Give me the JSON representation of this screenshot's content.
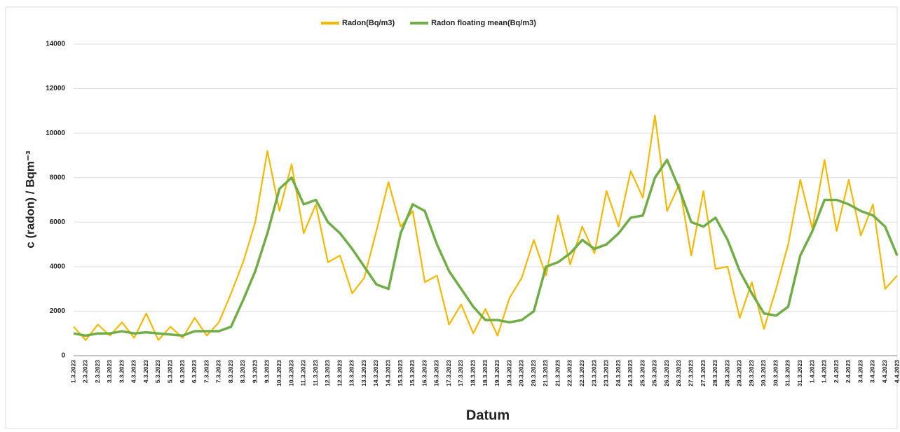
{
  "chart_data": {
    "type": "line",
    "y_label": "c (radon) / Bqm⁻³",
    "x_label": "Datum",
    "categories": [
      "1.3.2023",
      "2.3.2023",
      "2.3.2023",
      "3.3.2023",
      "3.3.2023",
      "4.3.2023",
      "4.3.2023",
      "5.3.2023",
      "5.3.2023",
      "6.3.2023",
      "6.3.2023",
      "7.3.2023",
      "7.3.2023",
      "8.3.2023",
      "8.3.2023",
      "9.3.2023",
      "9.3.2023",
      "10.3.2023",
      "10.3.2023",
      "11.3.2023",
      "11.3.2023",
      "12.3.2023",
      "12.3.2023",
      "13.3.2023",
      "13.3.2023",
      "14.3.2023",
      "14.3.2023",
      "15.3.2023",
      "15.3.2023",
      "16.3.2023",
      "16.3.2023",
      "17.3.2023",
      "17.3.2023",
      "18.3.2023",
      "18.3.2023",
      "19.3.2023",
      "19.3.2023",
      "20.3.2023",
      "20.3.2023",
      "21.3.2023",
      "21.3.2023",
      "22.3.2023",
      "22.3.2023",
      "23.3.2023",
      "23.3.2023",
      "24.3.2023",
      "24.3.2023",
      "25.3.2023",
      "25.3.2023",
      "26.3.2023",
      "26.3.2023",
      "27.3.2023",
      "27.3.2023",
      "28.3.2023",
      "28.3.2023",
      "29.3.2023",
      "29.3.2023",
      "30.3.2023",
      "30.3.2023",
      "31.3.2023",
      "31.3.2023",
      "1.4.2023",
      "1.4.2023",
      "2.4.2023",
      "2.4.2023",
      "3.4.2023",
      "3.4.2023",
      "4.4.2023",
      "4.4.2023"
    ],
    "series": [
      {
        "name": "Radon(Bq/m3)",
        "color": "#f5b800",
        "values": [
          1300,
          700,
          1400,
          900,
          1500,
          800,
          1900,
          700,
          1300,
          800,
          1700,
          900,
          1500,
          2800,
          4200,
          6000,
          9200,
          6500,
          8600,
          5500,
          6800,
          4200,
          4500,
          2800,
          3500,
          5600,
          7800,
          5800,
          6500,
          3300,
          3600,
          1400,
          2300,
          1000,
          2100,
          900,
          2600,
          3500,
          5200,
          3600,
          6300,
          4100,
          5800,
          4600,
          7400,
          5800,
          8300,
          7100,
          10800,
          6500,
          7700,
          4500,
          7400,
          3900,
          4000,
          1700,
          3300,
          1200,
          3000,
          5000,
          7900,
          5700,
          8800,
          5600,
          7900,
          5400,
          6800,
          3000,
          3600
        ]
      },
      {
        "name": "Radon floating mean(Bq/m3)",
        "color": "#70ad47",
        "values": [
          1000,
          900,
          1000,
          1000,
          1100,
          1000,
          1050,
          1000,
          950,
          900,
          1100,
          1100,
          1100,
          1300,
          2500,
          3800,
          5500,
          7500,
          8000,
          6800,
          7000,
          6000,
          5500,
          4800,
          4000,
          3200,
          3000,
          5500,
          6800,
          6500,
          5000,
          3800,
          3000,
          2200,
          1600,
          1600,
          1500,
          1600,
          2000,
          4000,
          4200,
          4600,
          5200,
          4800,
          5000,
          5500,
          6200,
          6300,
          8000,
          8800,
          7500,
          6000,
          5800,
          6200,
          5200,
          3800,
          2800,
          1900,
          1800,
          2200,
          4500,
          5600,
          7000,
          7000,
          6800,
          6500,
          6300,
          5800,
          4500
        ]
      }
    ],
    "ylim": [
      0,
      14000
    ],
    "yticks": [
      0,
      2000,
      4000,
      6000,
      8000,
      10000,
      12000,
      14000
    ],
    "grid": true,
    "legend": "top"
  }
}
